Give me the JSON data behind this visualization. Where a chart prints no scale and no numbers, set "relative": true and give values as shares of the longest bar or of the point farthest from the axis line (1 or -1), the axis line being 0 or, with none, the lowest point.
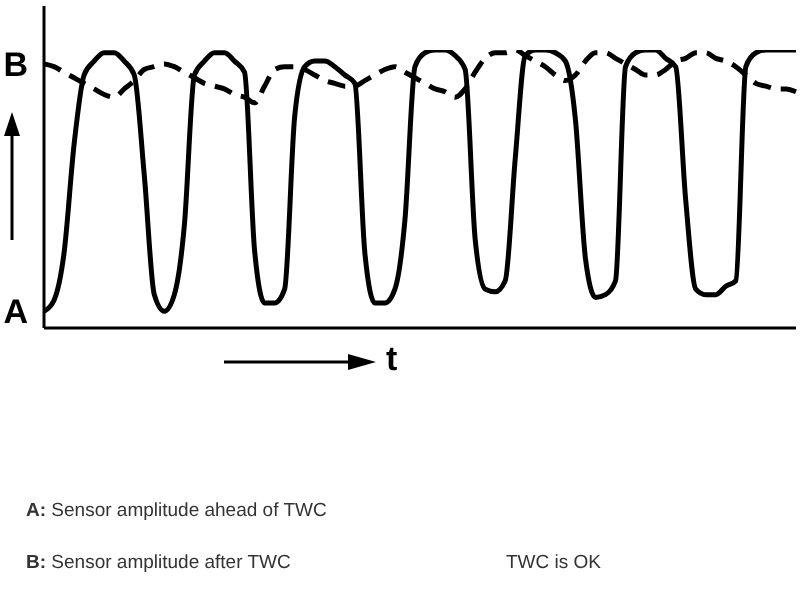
{
  "chart_data": {
    "type": "line",
    "relative": true,
    "xlabel": "t",
    "legend": false,
    "grid": false,
    "categories": [
      null,
      null,
      null,
      null,
      null,
      null,
      null,
      null,
      null,
      null,
      null,
      null,
      null,
      null,
      null,
      null,
      null,
      null,
      null,
      null,
      null,
      null,
      null,
      null,
      null,
      null,
      null,
      null,
      null,
      null,
      null,
      null,
      null,
      null,
      null,
      null,
      null,
      null,
      null,
      null,
      null,
      null,
      null,
      null,
      null,
      null,
      null,
      null,
      null,
      null,
      null,
      null,
      null,
      null,
      null,
      null,
      null,
      null,
      null,
      null,
      null,
      null,
      null,
      null,
      null,
      null,
      null,
      null,
      null,
      null,
      null,
      null,
      null,
      null,
      null,
      null
    ],
    "series": [
      {
        "name": "A",
        "color": "#000000",
        "line_style": "solid",
        "values": [
          0.06,
          0.1,
          0.27,
          0.66,
          0.91,
          0.96,
          0.99,
          0.99,
          0.96,
          0.91,
          0.55,
          0.12,
          0.06,
          0.12,
          0.37,
          0.91,
          0.96,
          0.99,
          0.99,
          0.96,
          0.92,
          0.28,
          0.09,
          0.09,
          0.14,
          0.76,
          0.94,
          0.96,
          0.96,
          0.94,
          0.91,
          0.88,
          0.27,
          0.09,
          0.09,
          0.14,
          0.39,
          0.94,
          0.99,
          1,
          1,
          0.98,
          0.93,
          0.32,
          0.14,
          0.13,
          0.17,
          0.61,
          0.98,
          1,
          1,
          0.99,
          0.96,
          0.75,
          0.25,
          0.11,
          0.12,
          0.17,
          0.94,
          0.99,
          1,
          1,
          0.97,
          0.94,
          0.46,
          0.14,
          0.12,
          0.12,
          0.15,
          0.17,
          0.94,
          0.99,
          1,
          1,
          1,
          1
        ]
      },
      {
        "name": "B",
        "color": "#000000",
        "line_style": "dashed",
        "values": [
          0.95,
          0.94,
          0.92,
          0.9,
          0.88,
          0.86,
          0.84,
          0.83,
          0.86,
          0.89,
          0.93,
          0.94,
          0.95,
          0.94,
          0.92,
          0.9,
          0.88,
          0.87,
          0.86,
          0.84,
          0.83,
          0.81,
          0.87,
          0.93,
          0.94,
          0.94,
          0.93,
          0.91,
          0.89,
          0.88,
          0.87,
          0.87,
          0.89,
          0.91,
          0.93,
          0.94,
          0.92,
          0.9,
          0.88,
          0.86,
          0.85,
          0.83,
          0.86,
          0.92,
          0.97,
          0.99,
          0.99,
          1,
          0.98,
          0.96,
          0.94,
          0.91,
          0.89,
          0.91,
          0.96,
          0.99,
          0.99,
          0.97,
          0.95,
          0.93,
          0.91,
          0.91,
          0.93,
          0.96,
          0.97,
          0.99,
          0.99,
          0.97,
          0.96,
          0.94,
          0.91,
          0.88,
          0.87,
          0.86,
          0.86,
          0.85
        ]
      }
    ],
    "annotations": [
      "A: Sensor amplitude ahead of TWC",
      "B: Sensor amplitude after TWC",
      "TWC is OK"
    ]
  }
}
